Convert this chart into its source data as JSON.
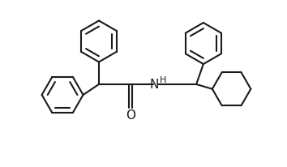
{
  "bg_color": "#ffffff",
  "line_color": "#1a1a1a",
  "line_width": 1.5,
  "figsize": [
    3.54,
    2.07
  ],
  "dpi": 100,
  "H_label": "H",
  "N_label": "N",
  "O_label": "O",
  "font_size": 9,
  "xlim": [
    -0.5,
    10.5
  ],
  "ylim": [
    -0.3,
    6.8
  ],
  "r_benz": 0.88,
  "r_cyc": 0.82
}
